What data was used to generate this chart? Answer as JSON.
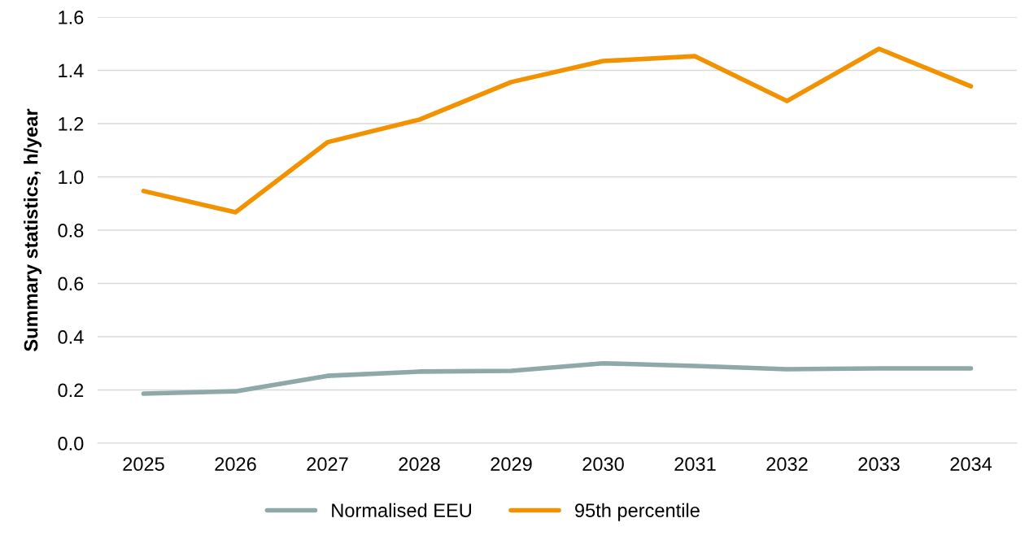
{
  "chart_data": {
    "type": "line",
    "ylabel": "Summary statistics, h/year",
    "categories": [
      "2025",
      "2026",
      "2027",
      "2028",
      "2029",
      "2030",
      "2031",
      "2032",
      "2033",
      "2034"
    ],
    "series": [
      {
        "name": "Normalised EEU",
        "color": "#8fa8a8",
        "values": [
          0.186,
          0.195,
          0.253,
          0.269,
          0.272,
          0.3,
          0.29,
          0.278,
          0.281,
          0.281
        ]
      },
      {
        "name": "95th percentile",
        "color": "#f29200",
        "values": [
          0.947,
          0.867,
          1.13,
          1.215,
          1.356,
          1.435,
          1.453,
          1.285,
          1.481,
          1.34
        ]
      }
    ],
    "ylim": [
      0,
      1.6
    ],
    "yticks": [
      {
        "value": 0,
        "label": "0.0"
      },
      {
        "value": 0.2,
        "label": "0.2"
      },
      {
        "value": 0.4,
        "label": "0.4"
      },
      {
        "value": 0.6,
        "label": "0.6"
      },
      {
        "value": 0.8,
        "label": "0.8"
      },
      {
        "value": 1.0,
        "label": "1.0"
      },
      {
        "value": 1.2,
        "label": "1.2"
      },
      {
        "value": 1.4,
        "label": "1.4"
      },
      {
        "value": 1.6,
        "label": "1.6"
      }
    ],
    "grid": "y",
    "legend": "bottom",
    "marker": "none",
    "line_style": "solid"
  }
}
